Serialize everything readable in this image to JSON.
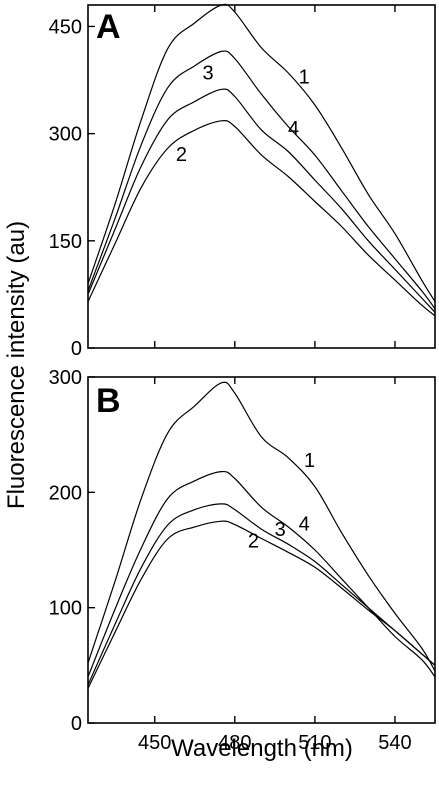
{
  "chart_data": [
    {
      "type": "line",
      "panel_label": "A",
      "xlim": [
        425,
        555
      ],
      "ylim": [
        0,
        480
      ],
      "yticks": [
        0,
        150,
        300,
        450
      ],
      "xticks": [
        450,
        480,
        510,
        540
      ],
      "grid": false,
      "series": [
        {
          "name": "1",
          "x": [
            425,
            435,
            445,
            455,
            465,
            475,
            480,
            490,
            500,
            510,
            520,
            530,
            540,
            550,
            555
          ],
          "y": [
            90,
            200,
            320,
            420,
            455,
            480,
            470,
            420,
            385,
            340,
            280,
            215,
            160,
            95,
            65
          ]
        },
        {
          "name": "3",
          "x": [
            425,
            435,
            445,
            455,
            465,
            475,
            480,
            490,
            500,
            510,
            520,
            530,
            540,
            550,
            555
          ],
          "y": [
            80,
            180,
            285,
            365,
            395,
            415,
            405,
            355,
            310,
            270,
            220,
            170,
            125,
            80,
            55
          ]
        },
        {
          "name": "4",
          "x": [
            425,
            435,
            445,
            455,
            465,
            475,
            480,
            490,
            500,
            510,
            520,
            530,
            540,
            550,
            555
          ],
          "y": [
            75,
            165,
            255,
            320,
            345,
            362,
            352,
            305,
            275,
            235,
            195,
            150,
            110,
            70,
            50
          ]
        },
        {
          "name": "2",
          "x": [
            425,
            435,
            445,
            455,
            465,
            475,
            480,
            490,
            500,
            510,
            520,
            530,
            540,
            550,
            555
          ],
          "y": [
            65,
            145,
            225,
            280,
            305,
            318,
            310,
            270,
            240,
            205,
            170,
            130,
            95,
            60,
            45
          ]
        }
      ],
      "curve_labels": [
        {
          "text": "1",
          "x": 506,
          "y": 370
        },
        {
          "text": "3",
          "x": 470,
          "y": 376
        },
        {
          "text": "4",
          "x": 502,
          "y": 298
        },
        {
          "text": "2",
          "x": 460,
          "y": 262
        }
      ]
    },
    {
      "type": "line",
      "panel_label": "B",
      "xlim": [
        425,
        555
      ],
      "ylim": [
        0,
        300
      ],
      "yticks": [
        0,
        100,
        200,
        300
      ],
      "xticks": [
        450,
        480,
        510,
        540
      ],
      "grid": false,
      "series": [
        {
          "name": "1",
          "x": [
            425,
            435,
            445,
            455,
            465,
            475,
            480,
            490,
            500,
            510,
            520,
            530,
            540,
            550,
            555
          ],
          "y": [
            52,
            122,
            195,
            252,
            275,
            295,
            286,
            248,
            230,
            205,
            165,
            128,
            95,
            65,
            45
          ]
        },
        {
          "name": "4",
          "x": [
            425,
            435,
            445,
            455,
            465,
            475,
            480,
            490,
            500,
            510,
            520,
            530,
            540,
            550,
            555
          ],
          "y": [
            40,
            98,
            152,
            195,
            210,
            218,
            212,
            187,
            170,
            150,
            125,
            100,
            75,
            55,
            40
          ]
        },
        {
          "name": "3",
          "x": [
            425,
            435,
            445,
            455,
            465,
            475,
            480,
            490,
            500,
            510,
            520,
            530,
            540,
            550,
            555
          ],
          "y": [
            33,
            85,
            135,
            172,
            185,
            190,
            185,
            168,
            155,
            140,
            120,
            100,
            80,
            60,
            50
          ]
        },
        {
          "name": "2",
          "x": [
            425,
            435,
            445,
            455,
            465,
            475,
            480,
            490,
            500,
            510,
            520,
            530,
            540,
            550,
            555
          ],
          "y": [
            30,
            78,
            125,
            160,
            170,
            175,
            172,
            160,
            148,
            135,
            117,
            98,
            80,
            60,
            50
          ]
        }
      ],
      "curve_labels": [
        {
          "text": "1",
          "x": 508,
          "y": 222
        },
        {
          "text": "4",
          "x": 506,
          "y": 167
        },
        {
          "text": "3",
          "x": 497,
          "y": 162
        },
        {
          "text": "2",
          "x": 487,
          "y": 152
        }
      ]
    }
  ],
  "shared": {
    "xlabel": "Wavelength (nm)",
    "ylabel": "Fluorescence intensity (au)"
  }
}
